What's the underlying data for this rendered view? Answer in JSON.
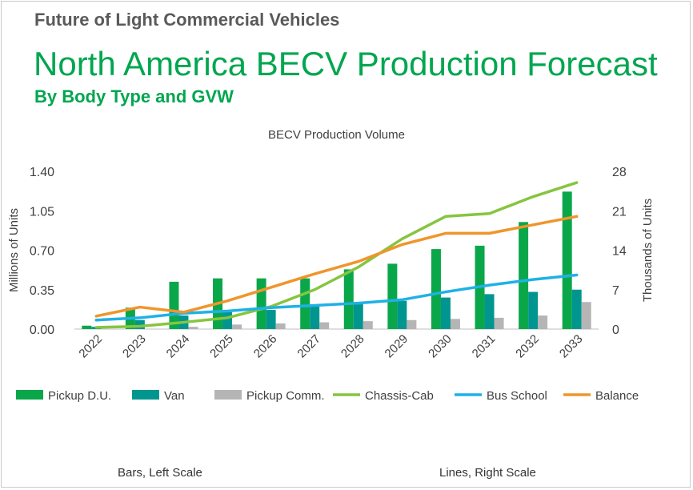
{
  "header": {
    "kicker": "Future of Light Commercial Vehicles",
    "title": "North America BECV Production Forecast",
    "subtitle": "By Body Type and GVW"
  },
  "footer": {
    "left_note": "Bars, Left Scale",
    "right_note": "Lines, Right Scale"
  },
  "chart_data": {
    "type": "bar",
    "title": "BECV Production Volume",
    "ylabel": "Millions of Units",
    "y2label": "Thousands of Units",
    "ylim": [
      0,
      1.4
    ],
    "y2lim": [
      0,
      28
    ],
    "yticks": [
      "0.00",
      "0.35",
      "0.70",
      "1.05",
      "1.40"
    ],
    "y2ticks": [
      "0",
      "7",
      "14",
      "21",
      "28"
    ],
    "categories": [
      "2022",
      "2023",
      "2024",
      "2025",
      "2026",
      "2027",
      "2028",
      "2029",
      "2030",
      "2031",
      "2032",
      "2033"
    ],
    "series": [
      {
        "name": "Pickup D.U.",
        "kind": "bar",
        "axis": "left",
        "color": "#0aa74a",
        "values": [
          0.03,
          0.19,
          0.42,
          0.45,
          0.45,
          0.45,
          0.53,
          0.58,
          0.71,
          0.74,
          0.95,
          1.22
        ]
      },
      {
        "name": "Van",
        "kind": "bar",
        "axis": "left",
        "color": "#00968f",
        "values": [
          0.02,
          0.08,
          0.12,
          0.15,
          0.17,
          0.2,
          0.22,
          0.25,
          0.28,
          0.31,
          0.33,
          0.35
        ]
      },
      {
        "name": "Pickup Comm.",
        "kind": "bar",
        "axis": "left",
        "color": "#b5b5b5",
        "values": [
          0.0,
          0.0,
          0.02,
          0.04,
          0.05,
          0.06,
          0.07,
          0.08,
          0.09,
          0.1,
          0.12,
          0.24
        ]
      },
      {
        "name": "Chassis-Cab",
        "kind": "line",
        "axis": "right",
        "color": "#86c540",
        "values": [
          0.3,
          0.5,
          1.2,
          2.0,
          4.0,
          7.0,
          11.0,
          16.0,
          20.0,
          20.5,
          23.5,
          26.0
        ]
      },
      {
        "name": "Bus School",
        "kind": "line",
        "axis": "right",
        "color": "#1fb1e6",
        "values": [
          1.6,
          2.0,
          2.8,
          3.2,
          3.8,
          4.2,
          4.6,
          5.2,
          6.6,
          7.8,
          8.8,
          9.6
        ]
      },
      {
        "name": "Balance",
        "kind": "line",
        "axis": "right",
        "color": "#f0952b",
        "values": [
          2.3,
          3.9,
          3.0,
          5.0,
          7.4,
          9.8,
          12.0,
          15.0,
          17.0,
          17.0,
          18.5,
          20.0
        ]
      }
    ],
    "legend": "bottom",
    "grid": false
  }
}
